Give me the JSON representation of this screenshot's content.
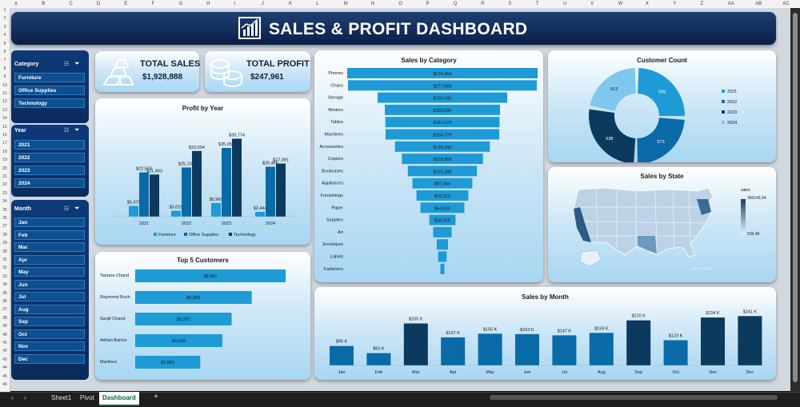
{
  "excel": {
    "columns": [
      "A",
      "B",
      "C",
      "D",
      "E",
      "F",
      "G",
      "H",
      "I",
      "J",
      "K",
      "L",
      "M",
      "N",
      "O",
      "P",
      "Q",
      "R",
      "S",
      "T",
      "U",
      "V",
      "W",
      "X",
      "Y",
      "Z",
      "AA",
      "AB",
      "AC"
    ],
    "rows": [
      "1",
      "2",
      "3",
      "4",
      "5",
      "6",
      "7",
      "8",
      "9",
      "10",
      "11",
      "12",
      "13",
      "14",
      "15",
      "16",
      "17",
      "18",
      "19",
      "20",
      "21",
      "22",
      "23",
      "24",
      "25",
      "26",
      "27",
      "28",
      "29",
      "30",
      "31",
      "32",
      "33",
      "34",
      "35",
      "36",
      "37",
      "38",
      "39",
      "40",
      "41",
      "42",
      "43",
      "44",
      "45",
      "46"
    ],
    "tabs": [
      {
        "label": "Sheet1",
        "active": false
      },
      {
        "label": "Pivot",
        "active": false
      },
      {
        "label": "Dashboard",
        "active": true
      }
    ],
    "add_sheet": "+"
  },
  "title": "SALES & PROFIT DASHBOARD",
  "kpis": {
    "sales_label": "TOTAL SALES",
    "sales_value": "$1,928,888",
    "profit_label": "TOTAL PROFIT",
    "profit_value": "$247,961"
  },
  "slicers": {
    "category": {
      "title": "Category",
      "items": [
        "Furniture",
        "Office Supplies",
        "Technology"
      ]
    },
    "year": {
      "title": "Year",
      "items": [
        "2021",
        "2022",
        "2023",
        "2024"
      ]
    },
    "month": {
      "title": "Month",
      "items": [
        "Jan",
        "Feb",
        "Mar",
        "Apr",
        "May",
        "Jun",
        "Jul",
        "Aug",
        "Sep",
        "Oct",
        "Nov",
        "Dec"
      ]
    }
  },
  "colors": {
    "light": "#1e9ad6",
    "mid": "#0b6aa8",
    "dark": "#0c3a5e",
    "navy": "#0a2b5c"
  },
  "chart_data": [
    {
      "type": "bar",
      "title": "Profit by Year",
      "categories": [
        "2021",
        "2022",
        "2023",
        "2024"
      ],
      "series": [
        {
          "name": "Furniture",
          "values": [
            5470,
            3015,
            6960,
            2444
          ],
          "labels": [
            "$5,470",
            "$3,015",
            "$6,960",
            "$2,444"
          ]
        },
        {
          "name": "Office Supplies",
          "values": [
            22593,
            25100,
            35053,
            25465
          ],
          "labels": [
            "$22,593",
            "$25,100",
            "$35,053",
            "$25,465"
          ]
        },
        {
          "name": "Technology",
          "values": [
            21493,
            33504,
            39774,
            27091
          ],
          "labels": [
            "$21,493",
            "$33,504",
            "$39,774",
            "$27,091"
          ]
        }
      ]
    },
    {
      "type": "bar",
      "title": "Top 5 Customers",
      "categories": [
        "Tamara Chand",
        "Raymond Buch",
        "Sanjit Chand",
        "Adrian Barton",
        "Martinez"
      ],
      "values": [
        8981,
        6959,
        5757,
        5203,
        3883
      ],
      "labels": [
        "$8,981",
        "$6,959",
        "$5,757",
        "$5,203",
        "$3,883"
      ]
    },
    {
      "type": "bar",
      "title": "Sales by Category",
      "categories": [
        "Phones",
        "Chairs",
        "Storage",
        "Binders",
        "Tables",
        "Machines",
        "Accessories",
        "Copiers",
        "Bookcases",
        "Appliances",
        "Furnishings",
        "Paper",
        "Supplies",
        "Art",
        "Envelopes",
        "Labels",
        "Fasteners"
      ],
      "values": [
        279464,
        277069,
        190180,
        169090,
        167673,
        166778,
        139242,
        118968,
        101388,
        87846,
        76223,
        64530,
        38555,
        27119,
        16476,
        12486,
        3024
      ],
      "labels": [
        "$279,464",
        "$277,069",
        "$190,180",
        "$169,090",
        "$167,673",
        "$166,778",
        "$139,242",
        "$118,968",
        "$101,388",
        "$87,846",
        "$76,223",
        "$64,530",
        "$38,555",
        "",
        "",
        "",
        ""
      ]
    },
    {
      "type": "pie",
      "title": "Customer Count",
      "categories": [
        "2021",
        "2022",
        "2023",
        "2024"
      ],
      "values": [
        595,
        573,
        638,
        513
      ],
      "labels": [
        "595",
        "573",
        "638",
        "513"
      ]
    },
    {
      "type": "bar",
      "title": "Sales by Month",
      "categories": [
        "Jan",
        "Feb",
        "Mar",
        "Apr",
        "May",
        "Jun",
        "Jul",
        "Aug",
        "Sep",
        "Oct",
        "Nov",
        "Dec"
      ],
      "values": [
        95,
        60,
        205,
        137,
        155,
        153,
        147,
        159,
        220,
        123,
        234,
        241
      ],
      "labels": [
        "$95 K",
        "$60 K",
        "$205 K",
        "$137 K",
        "$155 K",
        "$153 K",
        "$147 K",
        "$159 K",
        "$220 K",
        "$123 K",
        "$234 K",
        "$241 K"
      ]
    }
  ],
  "map": {
    "title": "Sales by State",
    "legend_title": "sales",
    "max": "390145.54",
    "min": "536.48",
    "credit": "Powered by Bing"
  }
}
